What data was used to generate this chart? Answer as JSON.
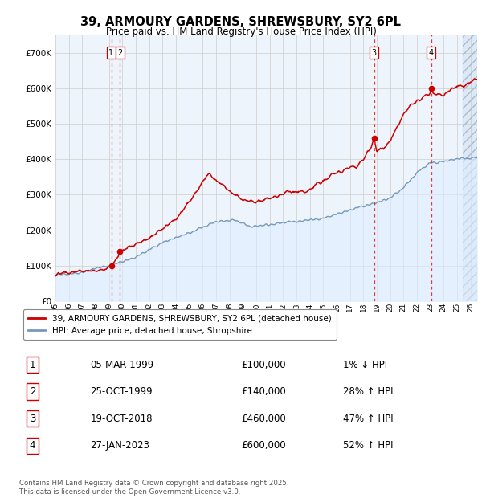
{
  "title": "39, ARMOURY GARDENS, SHREWSBURY, SY2 6PL",
  "subtitle": "Price paid vs. HM Land Registry's House Price Index (HPI)",
  "ylim": [
    0,
    750000
  ],
  "yticks": [
    0,
    100000,
    200000,
    300000,
    400000,
    500000,
    600000,
    700000
  ],
  "ytick_labels": [
    "£0",
    "£100K",
    "£200K",
    "£300K",
    "£400K",
    "£500K",
    "£600K",
    "£700K"
  ],
  "xlim_start": 1995.0,
  "xlim_end": 2026.5,
  "xtick_years": [
    1995,
    1996,
    1997,
    1998,
    1999,
    2000,
    2001,
    2002,
    2003,
    2004,
    2005,
    2006,
    2007,
    2008,
    2009,
    2010,
    2011,
    2012,
    2013,
    2014,
    2015,
    2016,
    2017,
    2018,
    2019,
    2020,
    2021,
    2022,
    2023,
    2024,
    2025,
    2026
  ],
  "transactions": [
    {
      "num": "1",
      "date": "05-MAR-1999",
      "year": 1999.17,
      "price": 100000,
      "label": "1% ↓ HPI"
    },
    {
      "num": "2",
      "date": "25-OCT-1999",
      "year": 1999.81,
      "price": 140000,
      "label": "28% ↑ HPI"
    },
    {
      "num": "3",
      "date": "19-OCT-2018",
      "year": 2018.8,
      "price": 460000,
      "label": "47% ↑ HPI"
    },
    {
      "num": "4",
      "date": "27-JAN-2023",
      "year": 2023.07,
      "price": 600000,
      "label": "52% ↑ HPI"
    }
  ],
  "red_line_color": "#cc0000",
  "blue_line_color": "#7799bb",
  "blue_fill_color": "#ddeeff",
  "grid_color": "#cccccc",
  "background_color": "#ffffff",
  "plot_bg_color": "#eef4fb",
  "dashed_line_color": "#ee3333",
  "hatch_start": 2025.42,
  "legend_label_red": "39, ARMOURY GARDENS, SHREWSBURY, SY2 6PL (detached house)",
  "legend_label_blue": "HPI: Average price, detached house, Shropshire",
  "footer": "Contains HM Land Registry data © Crown copyright and database right 2025.\nThis data is licensed under the Open Government Licence v3.0.",
  "table_rows": [
    [
      "1",
      "05-MAR-1999",
      "£100,000",
      "1% ↓ HPI"
    ],
    [
      "2",
      "25-OCT-1999",
      "£140,000",
      "28% ↑ HPI"
    ],
    [
      "3",
      "19-OCT-2018",
      "£460,000",
      "47% ↑ HPI"
    ],
    [
      "4",
      "27-JAN-2023",
      "£600,000",
      "52% ↑ HPI"
    ]
  ]
}
